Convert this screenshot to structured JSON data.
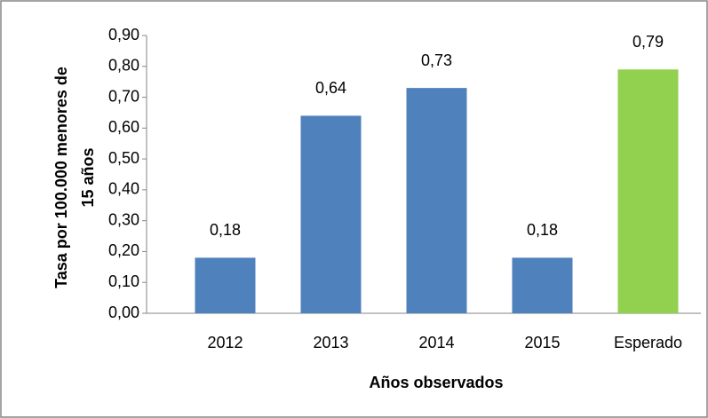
{
  "chart_data": {
    "type": "bar",
    "categories": [
      "2012",
      "2013",
      "2014",
      "2015",
      "Esperado"
    ],
    "values": [
      0.18,
      0.64,
      0.73,
      0.18,
      0.79
    ],
    "value_labels": [
      "0,18",
      "0,64",
      "0,73",
      "0,18",
      "0,79"
    ],
    "colors": [
      "#4f81bd",
      "#4f81bd",
      "#4f81bd",
      "#4f81bd",
      "#92d050"
    ],
    "xlabel": "Años observados",
    "ylabel": [
      "Tasa por 100.000 menores de",
      "15 años"
    ],
    "ylim": [
      0,
      0.9
    ],
    "yticks": [
      {
        "value": 0,
        "label": "0,00"
      },
      {
        "value": 0.1,
        "label": "0,10"
      },
      {
        "value": 0.2,
        "label": "0,20"
      },
      {
        "value": 0.3,
        "label": "0,30"
      },
      {
        "value": 0.4,
        "label": "0,40"
      },
      {
        "value": 0.5,
        "label": "0,50"
      },
      {
        "value": 0.6,
        "label": "0,60"
      },
      {
        "value": 0.7,
        "label": "0,70"
      },
      {
        "value": 0.8,
        "label": "0,80"
      },
      {
        "value": 0.9,
        "label": "0,90"
      }
    ],
    "grid": false
  }
}
